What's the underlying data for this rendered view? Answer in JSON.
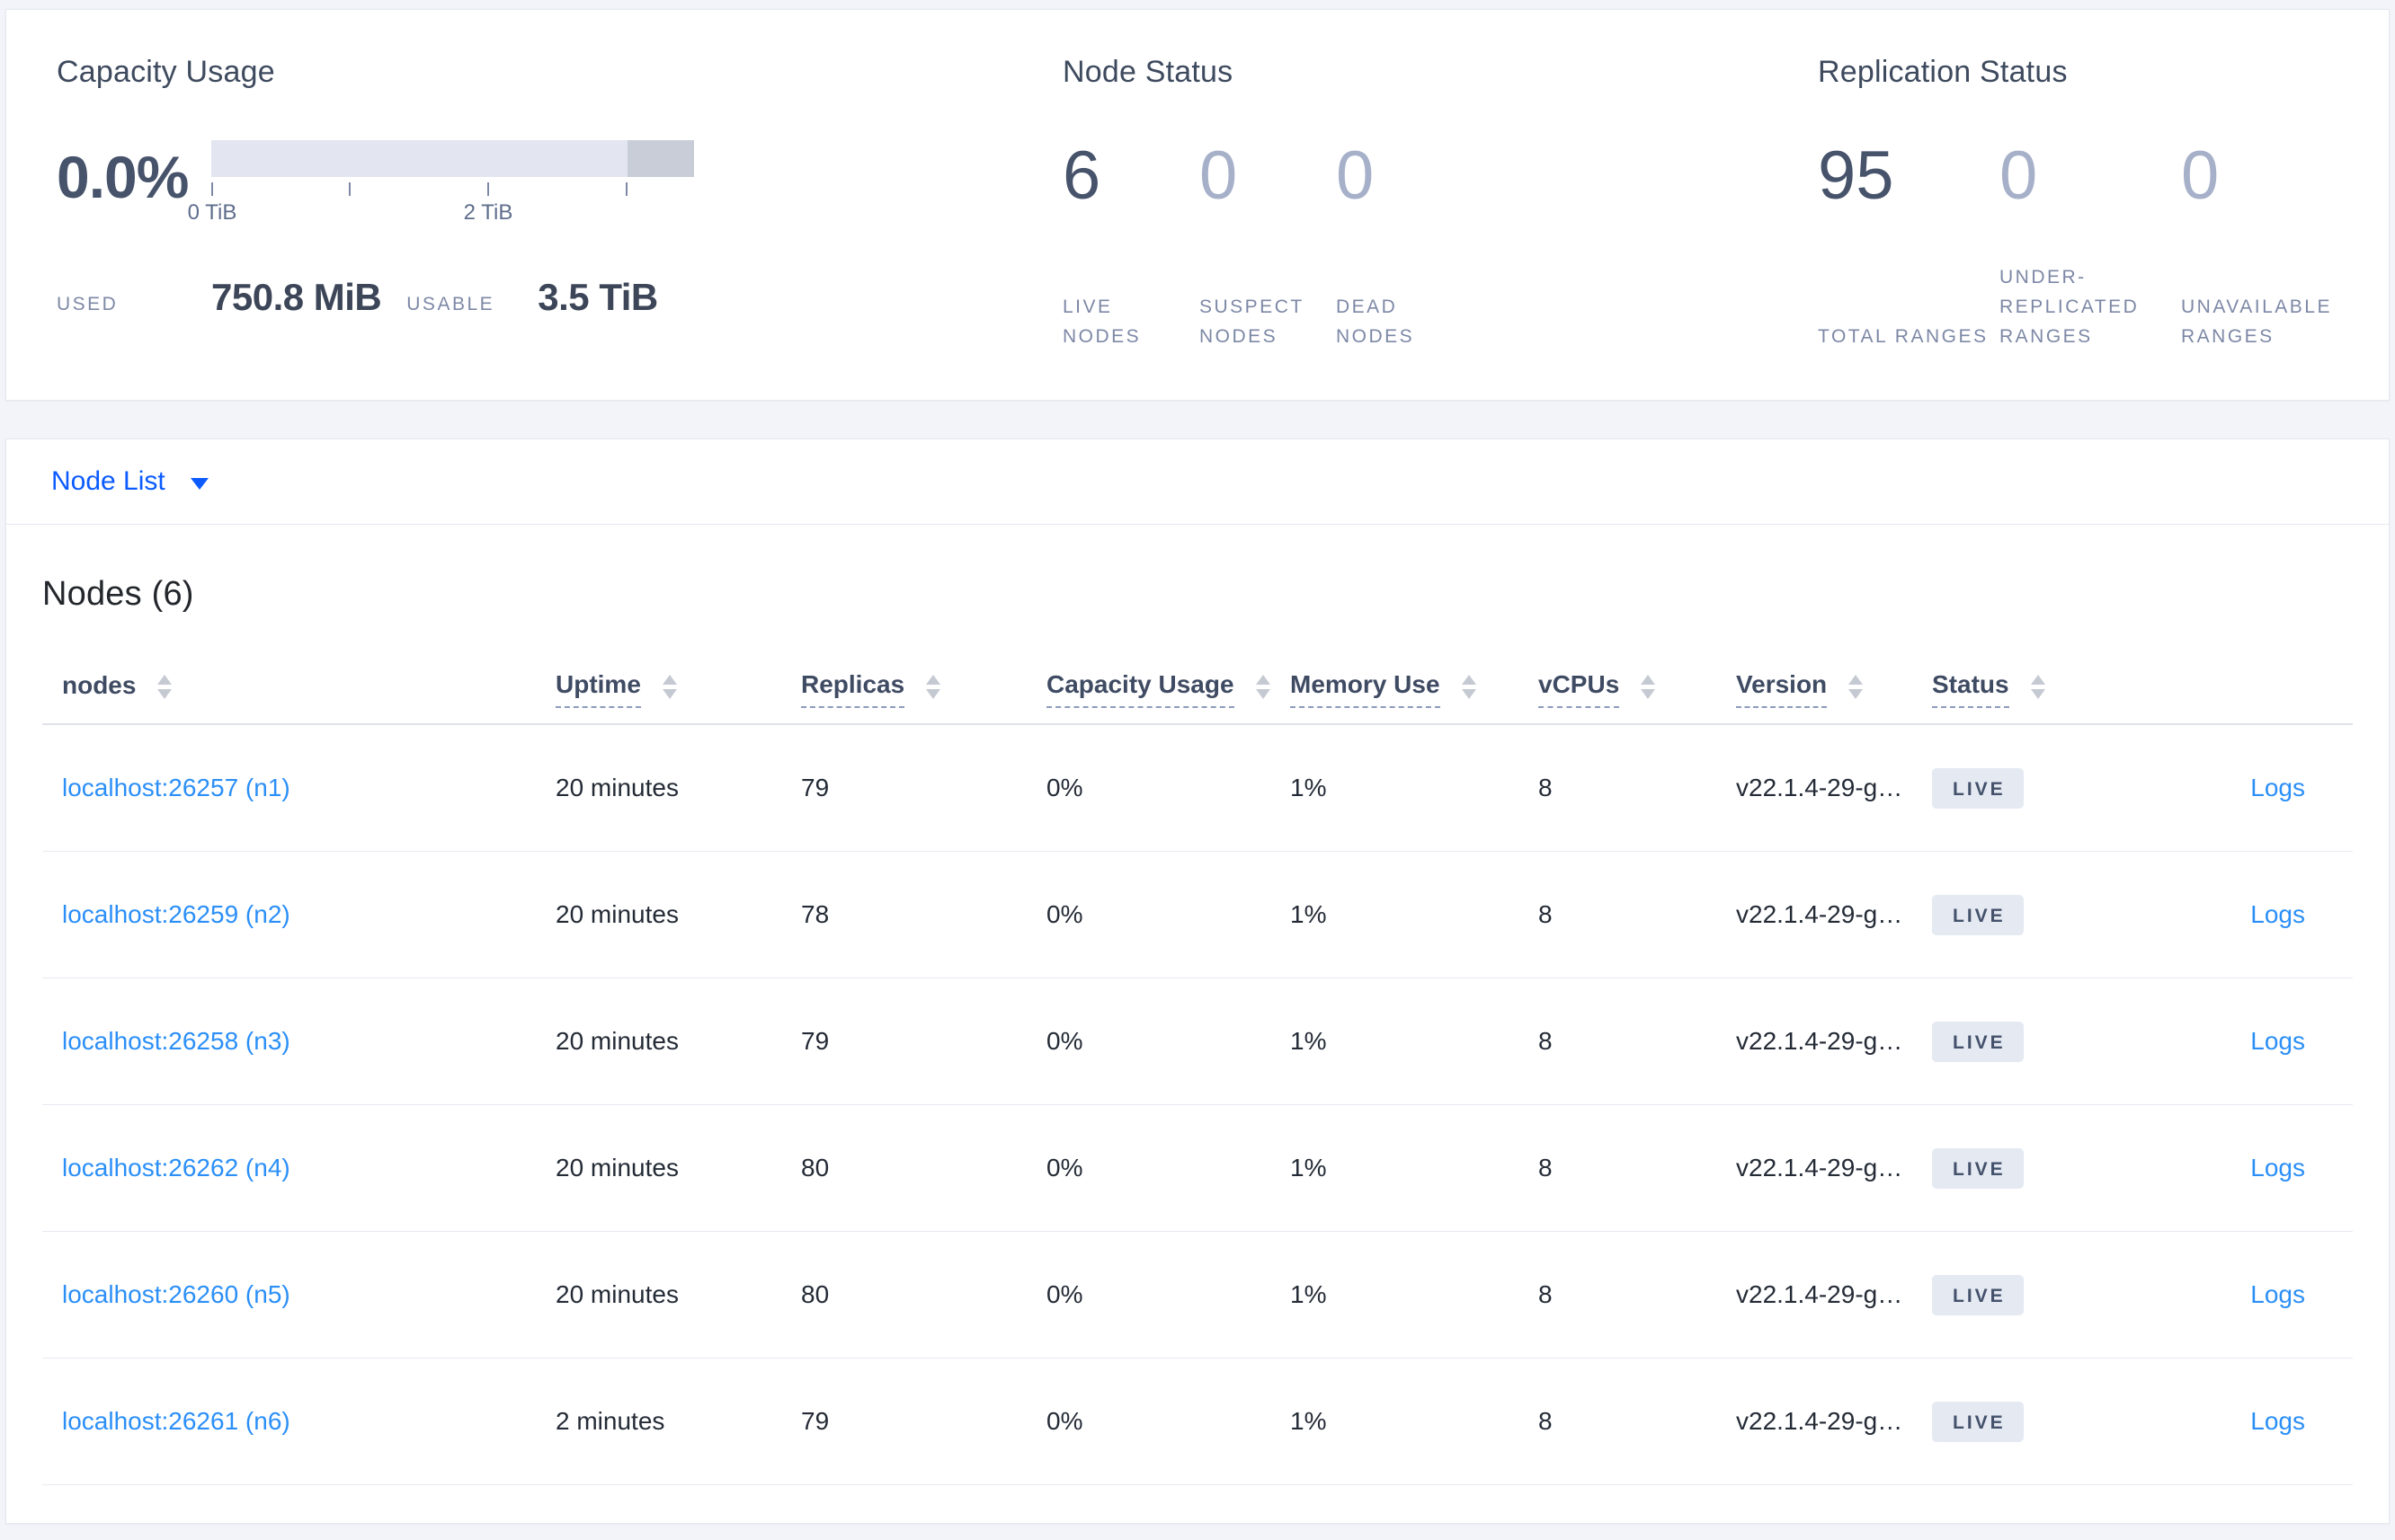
{
  "overview": {
    "capacity": {
      "title": "Capacity Usage",
      "percent": "0.0%",
      "tick_labels": [
        "0 TiB",
        "2 TiB"
      ],
      "used_label": "USED",
      "used_value": "750.8 MiB",
      "usable_label": "USABLE",
      "usable_value": "3.5 TiB"
    },
    "node_status": {
      "title": "Node Status",
      "stats": [
        {
          "value": "6",
          "label": "LIVE NODES"
        },
        {
          "value": "0",
          "label": "SUSPECT NODES"
        },
        {
          "value": "0",
          "label": "DEAD NODES"
        }
      ]
    },
    "replication": {
      "title": "Replication Status",
      "stats": [
        {
          "value": "95",
          "label": "TOTAL RANGES"
        },
        {
          "value": "0",
          "label": "UNDER-REPLICATED RANGES"
        },
        {
          "value": "0",
          "label": "UNAVAILABLE RANGES"
        }
      ]
    }
  },
  "node_list_selector": {
    "label": "Node List"
  },
  "nodes_table": {
    "title": "Nodes (6)",
    "columns": [
      "nodes",
      "Uptime",
      "Replicas",
      "Capacity Usage",
      "Memory Use",
      "vCPUs",
      "Version",
      "Status"
    ],
    "rows": [
      {
        "node": "localhost:26257 (n1)",
        "uptime": "20 minutes",
        "replicas": "79",
        "capacity": "0%",
        "memory": "1%",
        "vcpus": "8",
        "version": "v22.1.4-29-g…",
        "status": "LIVE",
        "logs": "Logs"
      },
      {
        "node": "localhost:26259 (n2)",
        "uptime": "20 minutes",
        "replicas": "78",
        "capacity": "0%",
        "memory": "1%",
        "vcpus": "8",
        "version": "v22.1.4-29-g…",
        "status": "LIVE",
        "logs": "Logs"
      },
      {
        "node": "localhost:26258 (n3)",
        "uptime": "20 minutes",
        "replicas": "79",
        "capacity": "0%",
        "memory": "1%",
        "vcpus": "8",
        "version": "v22.1.4-29-g…",
        "status": "LIVE",
        "logs": "Logs"
      },
      {
        "node": "localhost:26262 (n4)",
        "uptime": "20 minutes",
        "replicas": "80",
        "capacity": "0%",
        "memory": "1%",
        "vcpus": "8",
        "version": "v22.1.4-29-g…",
        "status": "LIVE",
        "logs": "Logs"
      },
      {
        "node": "localhost:26260 (n5)",
        "uptime": "20 minutes",
        "replicas": "80",
        "capacity": "0%",
        "memory": "1%",
        "vcpus": "8",
        "version": "v22.1.4-29-g…",
        "status": "LIVE",
        "logs": "Logs"
      },
      {
        "node": "localhost:26261 (n6)",
        "uptime": "2 minutes",
        "replicas": "79",
        "capacity": "0%",
        "memory": "1%",
        "vcpus": "8",
        "version": "v22.1.4-29-g…",
        "status": "LIVE",
        "logs": "Logs"
      }
    ]
  },
  "colors": {
    "accent_blue": "#0b5bff",
    "link_blue": "#2b8ff7",
    "badge_bg": "#e4e9f2",
    "badge_text": "#44516b",
    "bar_light": "#e3e6f0",
    "bar_dark": "#c9cdd8",
    "page_bg": "#f3f4f9"
  }
}
